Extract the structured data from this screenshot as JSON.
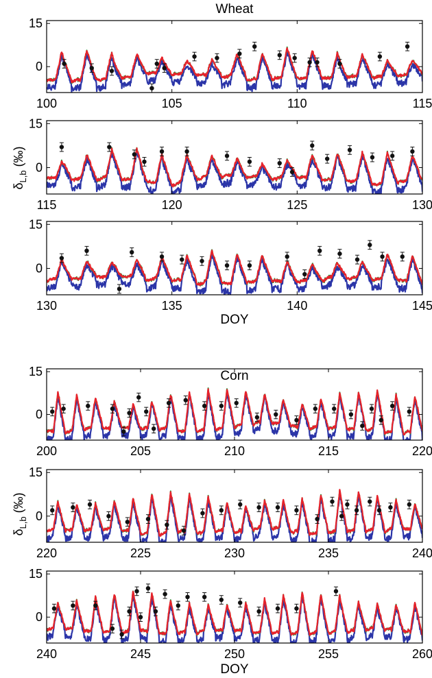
{
  "figure": {
    "groups": [
      {
        "title": "Wheat",
        "ylabel_main": "δ",
        "ylabel_sub": "L,b",
        "ylabel_unit": " (‰)",
        "xlabel": "DOY",
        "panels": [
          {
            "xlim": [
              100,
              115
            ],
            "xticks": [
              "100",
              "105",
              "110",
              "115"
            ],
            "ylim": [
              -9,
              16
            ],
            "yticks": [
              "15",
              "0"
            ],
            "ytick_values": [
              15,
              0
            ]
          },
          {
            "xlim": [
              115,
              130
            ],
            "xticks": [
              "115",
              "120",
              "125",
              "130"
            ],
            "ylim": [
              -9,
              16
            ],
            "yticks": [
              "15",
              "0"
            ],
            "ytick_values": [
              15,
              0
            ]
          },
          {
            "xlim": [
              130,
              145
            ],
            "xticks": [
              "130",
              "135",
              "140",
              "145"
            ],
            "ylim": [
              -9,
              16
            ],
            "yticks": [
              "15",
              "0"
            ],
            "ytick_values": [
              15,
              0
            ]
          }
        ]
      },
      {
        "title": "Corn",
        "ylabel_main": "δ",
        "ylabel_sub": "L,b",
        "ylabel_unit": " (‰)",
        "xlabel": "DOY",
        "panels": [
          {
            "xlim": [
              200,
              220
            ],
            "xticks": [
              "200",
              "205",
              "210",
              "215",
              "220"
            ],
            "ylim": [
              -9,
              16
            ],
            "yticks": [
              "15",
              "0"
            ],
            "ytick_values": [
              15,
              0
            ]
          },
          {
            "xlim": [
              220,
              240
            ],
            "xticks": [
              "220",
              "225",
              "230",
              "235",
              "240"
            ],
            "ylim": [
              -9,
              16
            ],
            "yticks": [
              "15",
              "0"
            ],
            "ytick_values": [
              15,
              0
            ]
          },
          {
            "xlim": [
              240,
              260
            ],
            "xticks": [
              "240",
              "245",
              "250",
              "255",
              "260"
            ],
            "ylim": [
              -9,
              16
            ],
            "yticks": [
              "15",
              "0"
            ],
            "ytick_values": [
              15,
              0
            ]
          }
        ]
      }
    ],
    "colors": {
      "blue": "#2b35a8",
      "red": "#e8222b",
      "green": "#1e9a3a",
      "obs": "#111111"
    }
  },
  "chart_data": [
    {
      "type": "line",
      "title": "Wheat",
      "xlabel": "DOY",
      "ylabel": "δL,b (‰)",
      "x_range": [
        100,
        145
      ],
      "y_range": [
        -9,
        16
      ],
      "series": [
        {
          "color": "blue",
          "style": "line"
        },
        {
          "color": "red",
          "style": "line"
        },
        {
          "color": "green",
          "style": "line"
        },
        {
          "color": "black",
          "style": "markers with error bars",
          "points": [
            {
              "x": 100.7,
              "y": 1
            },
            {
              "x": 101.8,
              "y": -0.5
            },
            {
              "x": 102.6,
              "y": -1.5
            },
            {
              "x": 104.2,
              "y": -7.5
            },
            {
              "x": 104.4,
              "y": 1
            },
            {
              "x": 104.7,
              "y": -0.5
            },
            {
              "x": 105.9,
              "y": 3.5
            },
            {
              "x": 106.8,
              "y": 3
            },
            {
              "x": 107.7,
              "y": 4.5
            },
            {
              "x": 108.3,
              "y": 7
            },
            {
              "x": 109.3,
              "y": 4
            },
            {
              "x": 109.9,
              "y": 3
            },
            {
              "x": 110.5,
              "y": 1.5
            },
            {
              "x": 110.8,
              "y": 1.5
            },
            {
              "x": 111.7,
              "y": 1
            },
            {
              "x": 113.3,
              "y": 3.5
            },
            {
              "x": 114.4,
              "y": 7
            },
            {
              "x": 115.6,
              "y": 7
            },
            {
              "x": 117.5,
              "y": 7
            },
            {
              "x": 118.5,
              "y": 4.5
            },
            {
              "x": 118.9,
              "y": 2
            },
            {
              "x": 119.6,
              "y": 5.5
            },
            {
              "x": 120.6,
              "y": 5.5
            },
            {
              "x": 122.2,
              "y": 4
            },
            {
              "x": 123.1,
              "y": 2
            },
            {
              "x": 124.3,
              "y": 1.5
            },
            {
              "x": 124.8,
              "y": -1.5
            },
            {
              "x": 125.6,
              "y": 7.5
            },
            {
              "x": 126.2,
              "y": 3
            },
            {
              "x": 127.1,
              "y": 6
            },
            {
              "x": 128.0,
              "y": 3.5
            },
            {
              "x": 128.8,
              "y": 4
            },
            {
              "x": 129.6,
              "y": 5.5
            },
            {
              "x": 130.6,
              "y": 3.5
            },
            {
              "x": 131.6,
              "y": 6
            },
            {
              "x": 132.9,
              "y": -7
            },
            {
              "x": 133.4,
              "y": 5.5
            },
            {
              "x": 134.6,
              "y": 4
            },
            {
              "x": 135.4,
              "y": 3
            },
            {
              "x": 136.2,
              "y": 2.5
            },
            {
              "x": 137.2,
              "y": 1
            },
            {
              "x": 138.1,
              "y": 1
            },
            {
              "x": 139.6,
              "y": 4
            },
            {
              "x": 140.3,
              "y": -2
            },
            {
              "x": 140.9,
              "y": 6
            },
            {
              "x": 141.7,
              "y": 5
            },
            {
              "x": 142.4,
              "y": 3
            },
            {
              "x": 142.9,
              "y": 8
            },
            {
              "x": 143.4,
              "y": 4
            },
            {
              "x": 144.2,
              "y": 4
            }
          ]
        }
      ]
    },
    {
      "type": "line",
      "title": "Corn",
      "xlabel": "DOY",
      "ylabel": "δL,b (‰)",
      "x_range": [
        200,
        260
      ],
      "y_range": [
        -9,
        16
      ],
      "series": [
        {
          "color": "blue",
          "style": "line"
        },
        {
          "color": "red",
          "style": "line"
        },
        {
          "color": "green",
          "style": "line"
        },
        {
          "color": "black",
          "style": "markers with error bars",
          "points": [
            {
              "x": 200.3,
              "y": 1
            },
            {
              "x": 200.9,
              "y": 2
            },
            {
              "x": 202.2,
              "y": 3
            },
            {
              "x": 203.5,
              "y": 2
            },
            {
              "x": 204.1,
              "y": -6
            },
            {
              "x": 204.4,
              "y": 0.5
            },
            {
              "x": 204.9,
              "y": 6
            },
            {
              "x": 205.3,
              "y": 1
            },
            {
              "x": 205.7,
              "y": -5
            },
            {
              "x": 206.5,
              "y": 4
            },
            {
              "x": 207.4,
              "y": 5
            },
            {
              "x": 208.4,
              "y": 3
            },
            {
              "x": 209.3,
              "y": 3
            },
            {
              "x": 210.1,
              "y": 4
            },
            {
              "x": 211.2,
              "y": -1
            },
            {
              "x": 212.2,
              "y": 0
            },
            {
              "x": 213.3,
              "y": -2
            },
            {
              "x": 214.3,
              "y": 2
            },
            {
              "x": 215.3,
              "y": 2
            },
            {
              "x": 216.2,
              "y": 0
            },
            {
              "x": 216.8,
              "y": -4
            },
            {
              "x": 217.3,
              "y": 2
            },
            {
              "x": 217.8,
              "y": -2
            },
            {
              "x": 218.4,
              "y": 3
            },
            {
              "x": 219.3,
              "y": 1
            },
            {
              "x": 220.3,
              "y": 2
            },
            {
              "x": 221.4,
              "y": 3
            },
            {
              "x": 222.3,
              "y": 4
            },
            {
              "x": 223.3,
              "y": 0
            },
            {
              "x": 224.3,
              "y": -2
            },
            {
              "x": 225.4,
              "y": -1
            },
            {
              "x": 226.4,
              "y": -3
            },
            {
              "x": 227.3,
              "y": -5
            },
            {
              "x": 228.3,
              "y": 1
            },
            {
              "x": 229.3,
              "y": 2
            },
            {
              "x": 230.3,
              "y": 4
            },
            {
              "x": 231.3,
              "y": 3
            },
            {
              "x": 232.3,
              "y": 3
            },
            {
              "x": 233.3,
              "y": 2
            },
            {
              "x": 234.4,
              "y": -1
            },
            {
              "x": 235.2,
              "y": 5
            },
            {
              "x": 235.7,
              "y": 0
            },
            {
              "x": 236.0,
              "y": 4
            },
            {
              "x": 236.5,
              "y": 2
            },
            {
              "x": 237.2,
              "y": 5
            },
            {
              "x": 237.7,
              "y": 2
            },
            {
              "x": 238.3,
              "y": 3
            },
            {
              "x": 239.3,
              "y": 4
            },
            {
              "x": 240.4,
              "y": 3
            },
            {
              "x": 241.4,
              "y": 4
            },
            {
              "x": 242.6,
              "y": 4
            },
            {
              "x": 243.5,
              "y": -4
            },
            {
              "x": 244.0,
              "y": -6
            },
            {
              "x": 244.4,
              "y": 2
            },
            {
              "x": 244.8,
              "y": 9
            },
            {
              "x": 245.0,
              "y": 0
            },
            {
              "x": 245.4,
              "y": 10
            },
            {
              "x": 245.8,
              "y": 2
            },
            {
              "x": 246.3,
              "y": 8
            },
            {
              "x": 247.0,
              "y": 4
            },
            {
              "x": 247.5,
              "y": 7
            },
            {
              "x": 248.4,
              "y": 7
            },
            {
              "x": 249.3,
              "y": 6
            },
            {
              "x": 250.3,
              "y": 5
            },
            {
              "x": 251.3,
              "y": 2
            },
            {
              "x": 252.3,
              "y": 3
            },
            {
              "x": 253.3,
              "y": 3
            },
            {
              "x": 255.4,
              "y": 9
            }
          ]
        }
      ]
    }
  ]
}
